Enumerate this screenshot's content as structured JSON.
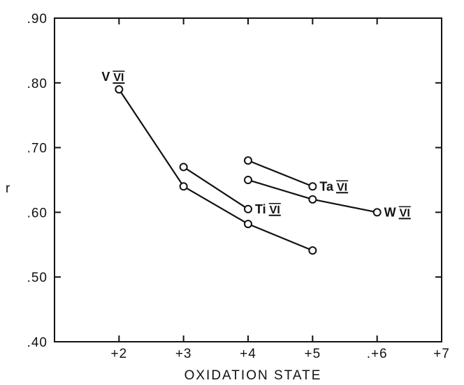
{
  "chart_data": {
    "type": "line",
    "title": "",
    "xlabel": "OXIDATION STATE",
    "ylabel": "r",
    "xlim": [
      1,
      7
    ],
    "ylim": [
      0.4,
      0.9
    ],
    "x_ticks": [
      2,
      3,
      4,
      5,
      6,
      7
    ],
    "x_tick_labels": [
      "+2",
      "+3",
      "+4",
      "+5",
      ".+6",
      "+7"
    ],
    "y_ticks": [
      0.4,
      0.5,
      0.6,
      0.7,
      0.8,
      0.9
    ],
    "y_tick_labels": [
      ".40",
      ".50",
      ".60",
      ".70",
      ".80",
      ".90"
    ],
    "grid": false,
    "legend": "none",
    "marker": "open-circle",
    "series": [
      {
        "name": "V VI",
        "element": "V",
        "coordination": "VI",
        "x": [
          2,
          3,
          4,
          5
        ],
        "y": [
          0.79,
          0.64,
          0.582,
          0.541
        ],
        "label_at": [
          2,
          0.79
        ]
      },
      {
        "name": "Ti VI",
        "element": "Ti",
        "coordination": "VI",
        "x": [
          3,
          4
        ],
        "y": [
          0.67,
          0.605
        ],
        "label_at": [
          4,
          0.605
        ]
      },
      {
        "name": "Ta VI",
        "element": "Ta",
        "coordination": "VI",
        "x": [
          4,
          5
        ],
        "y": [
          0.68,
          0.64
        ],
        "label_at": [
          5,
          0.64
        ]
      },
      {
        "name": "W VI",
        "element": "W",
        "coordination": "VI",
        "x": [
          4,
          5,
          6
        ],
        "y": [
          0.65,
          0.62,
          0.6
        ],
        "label_at": [
          6,
          0.6
        ]
      }
    ],
    "line_color": "#111111"
  }
}
